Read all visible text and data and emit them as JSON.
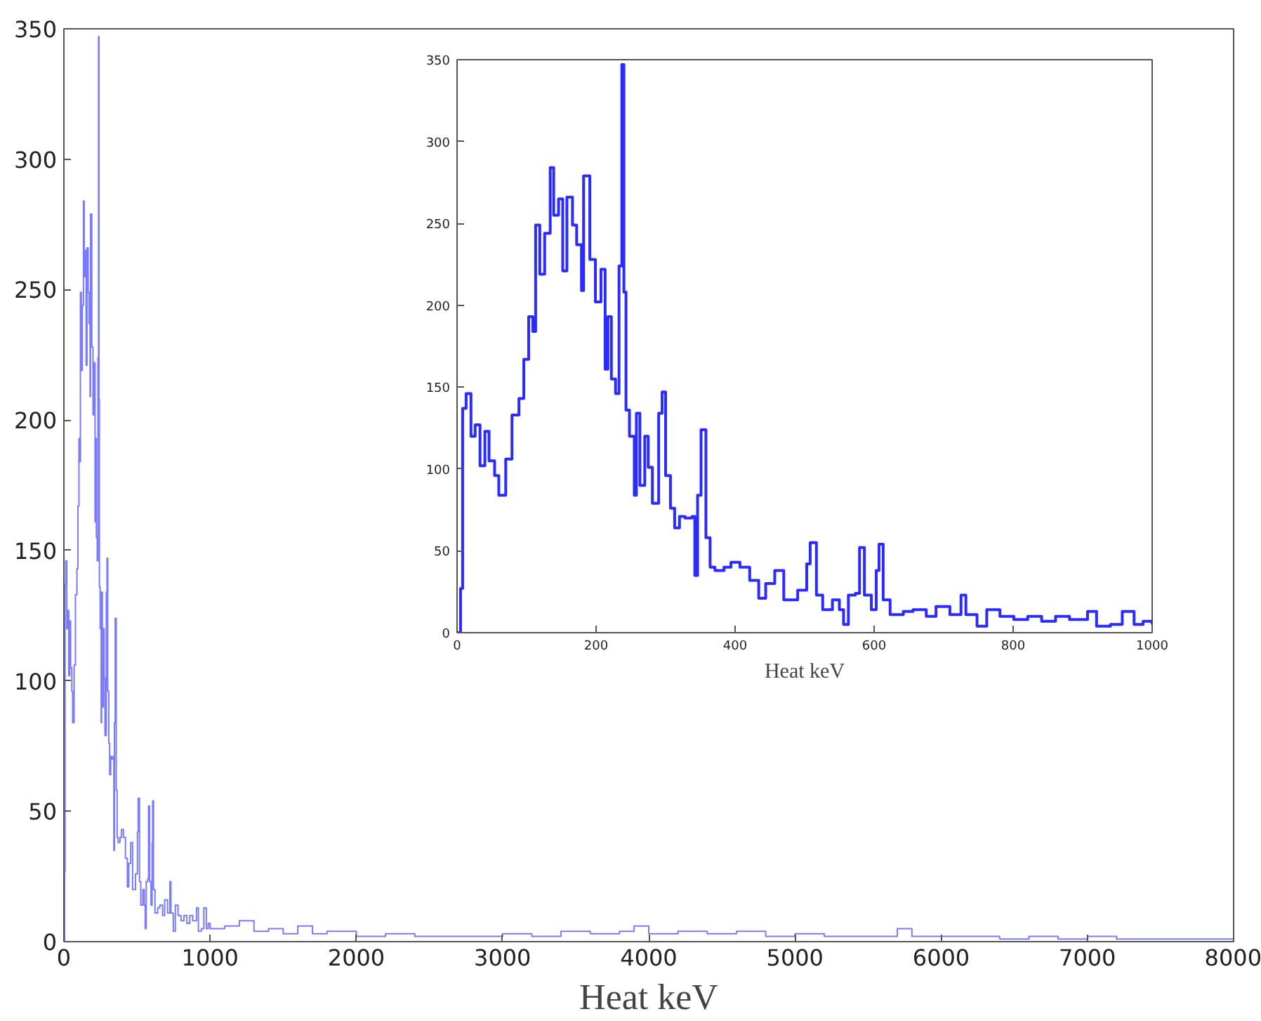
{
  "chart_data": [
    {
      "type": "step",
      "xlabel": "Heat keV",
      "xlim": [
        0,
        8000
      ],
      "ylim": [
        0,
        350
      ],
      "xticks": [
        0,
        1000,
        2000,
        3000,
        4000,
        5000,
        6000,
        7000,
        8000
      ],
      "yticks": [
        0,
        50,
        100,
        150,
        200,
        250,
        300,
        350
      ],
      "grid": false,
      "series": [
        {
          "color": "#7a7aff",
          "x": [
            0,
            5,
            8,
            13,
            20,
            26,
            33,
            40,
            46,
            54,
            60,
            70,
            79,
            89,
            96,
            103,
            109,
            113,
            119,
            126,
            134,
            139,
            146,
            152,
            158,
            166,
            172,
            179,
            182,
            191,
            199,
            207,
            213,
            217,
            222,
            228,
            233,
            237,
            240,
            243,
            248,
            255,
            258,
            263,
            270,
            275,
            281,
            290,
            295,
            300,
            307,
            313,
            320,
            328,
            338,
            342,
            346,
            351,
            358,
            364,
            371,
            384,
            394,
            407,
            421,
            434,
            444,
            457,
            470,
            490,
            503,
            508,
            517,
            526,
            540,
            550,
            556,
            563,
            573,
            579,
            586,
            596,
            603,
            607,
            613,
            623,
            642,
            656,
            675,
            689,
            709,
            725,
            732,
            748,
            762,
            781,
            801,
            821,
            841,
            861,
            881,
            907,
            920,
            940,
            957,
            974,
            987,
            1000,
            1100,
            1200,
            1300,
            1400,
            1500,
            1600,
            1700,
            1800,
            2000,
            2200,
            2400,
            2600,
            2800,
            3000,
            3200,
            3400,
            3600,
            3800,
            3900,
            4000,
            4200,
            4400,
            4600,
            4800,
            5000,
            5200,
            5400,
            5600,
            5700,
            5800,
            6000,
            6200,
            6400,
            6600,
            6800,
            7000,
            7200,
            7400,
            7600,
            7800,
            8000
          ],
          "values": [
            0,
            27,
            137,
            146,
            120,
            127,
            102,
            123,
            105,
            96,
            84,
            106,
            133,
            143,
            167,
            193,
            184,
            249,
            219,
            244,
            284,
            255,
            265,
            221,
            266,
            249,
            237,
            209,
            279,
            228,
            202,
            222,
            161,
            193,
            155,
            146,
            224,
            347,
            208,
            136,
            120,
            84,
            134,
            90,
            120,
            101,
            79,
            134,
            147,
            96,
            76,
            64,
            71,
            70,
            71,
            35,
            84,
            124,
            58,
            40,
            38,
            40,
            43,
            40,
            32,
            21,
            30,
            38,
            20,
            26,
            42,
            55,
            23,
            14,
            20,
            14,
            5,
            23,
            24,
            52,
            23,
            14,
            38,
            54,
            20,
            11,
            13,
            14,
            10,
            16,
            11,
            23,
            11,
            4,
            14,
            10,
            8,
            10,
            7,
            10,
            8,
            13,
            4,
            5,
            13,
            5,
            7,
            5,
            6,
            8,
            4,
            5,
            3,
            6,
            3,
            4,
            2,
            3,
            2,
            2,
            2,
            3,
            2,
            4,
            3,
            4,
            6,
            3,
            4,
            3,
            4,
            2,
            3,
            2,
            2,
            2,
            5,
            2,
            2,
            2,
            1,
            2,
            1,
            2,
            1,
            1,
            1,
            1,
            1
          ]
        }
      ]
    },
    {
      "type": "step",
      "xlabel": "Heat keV",
      "xlim": [
        0,
        1000
      ],
      "ylim": [
        0,
        350
      ],
      "xticks": [
        0,
        200,
        400,
        600,
        800,
        1000
      ],
      "yticks": [
        0,
        50,
        100,
        150,
        200,
        250,
        300,
        350
      ],
      "grid": false,
      "series": [
        {
          "color": "#2b2bff",
          "x": [
            0,
            5,
            8,
            13,
            20,
            26,
            33,
            40,
            46,
            54,
            60,
            70,
            79,
            89,
            96,
            103,
            109,
            113,
            119,
            126,
            134,
            139,
            146,
            152,
            158,
            166,
            172,
            179,
            182,
            191,
            199,
            207,
            213,
            217,
            222,
            228,
            233,
            237,
            240,
            243,
            248,
            255,
            258,
            263,
            270,
            275,
            281,
            290,
            295,
            300,
            307,
            313,
            320,
            328,
            338,
            342,
            346,
            351,
            358,
            364,
            371,
            384,
            394,
            407,
            421,
            434,
            444,
            457,
            470,
            490,
            503,
            508,
            517,
            526,
            540,
            550,
            556,
            563,
            573,
            579,
            586,
            596,
            603,
            607,
            613,
            623,
            642,
            656,
            675,
            689,
            709,
            725,
            732,
            748,
            762,
            781,
            801,
            821,
            841,
            861,
            881,
            907,
            920,
            940,
            957,
            974,
            987,
            1000
          ],
          "values": [
            0,
            27,
            137,
            146,
            120,
            127,
            102,
            123,
            105,
            96,
            84,
            106,
            133,
            143,
            167,
            193,
            184,
            249,
            219,
            244,
            284,
            255,
            265,
            221,
            266,
            249,
            237,
            209,
            279,
            228,
            202,
            222,
            161,
            193,
            155,
            146,
            224,
            347,
            208,
            136,
            120,
            84,
            134,
            90,
            120,
            101,
            79,
            134,
            147,
            96,
            76,
            64,
            71,
            70,
            71,
            35,
            84,
            124,
            58,
            40,
            38,
            40,
            43,
            40,
            32,
            21,
            30,
            38,
            20,
            26,
            42,
            55,
            23,
            14,
            20,
            14,
            5,
            23,
            24,
            52,
            23,
            14,
            38,
            54,
            20,
            11,
            13,
            14,
            10,
            16,
            11,
            23,
            11,
            4,
            14,
            10,
            8,
            10,
            7,
            10,
            8,
            13,
            4,
            5,
            13,
            5,
            7,
            5
          ]
        }
      ]
    }
  ]
}
